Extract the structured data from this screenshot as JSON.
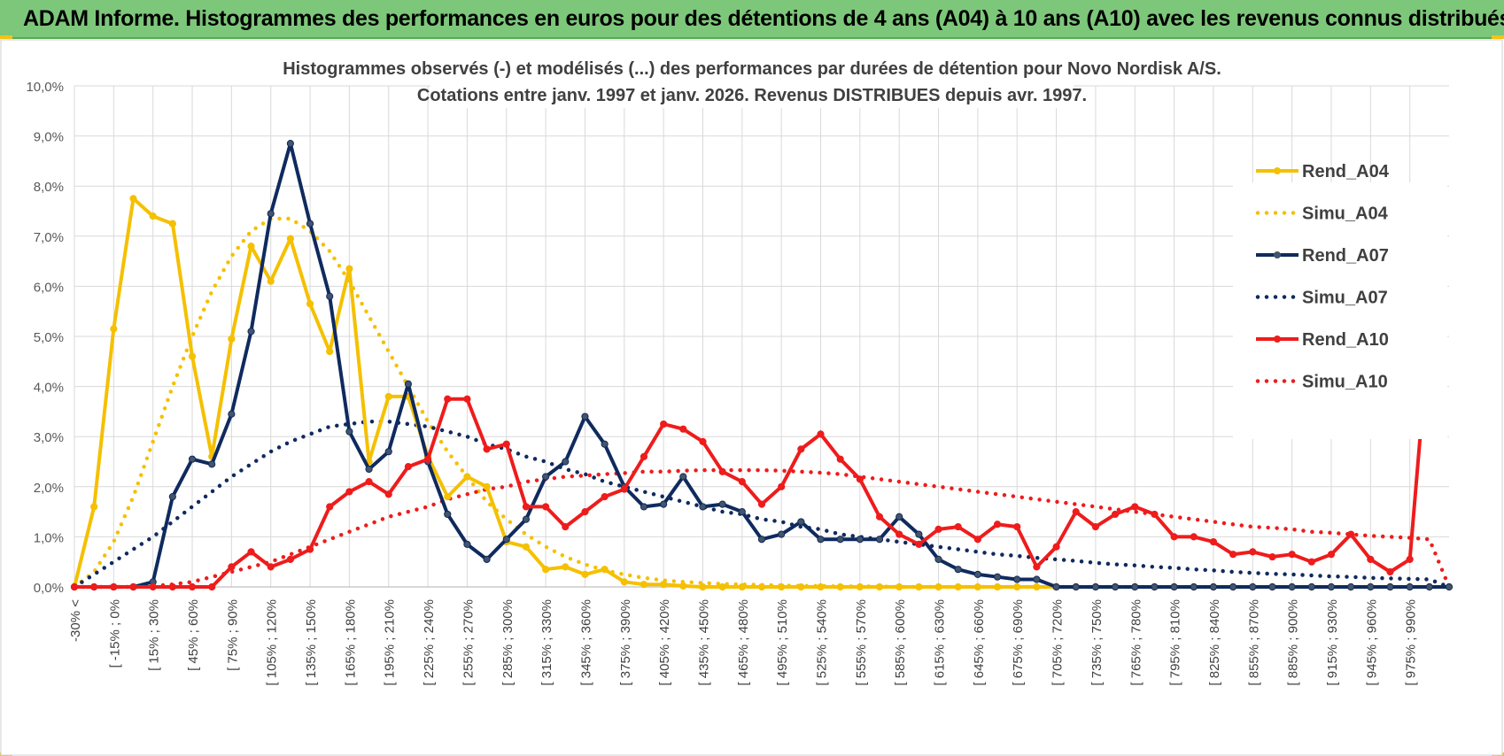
{
  "header": {
    "title": "ADAM Informe. Histogrammes des performances en euros pour des détentions de 4 ans (A04) à 10 ans (A10) avec les revenus connus distribués"
  },
  "colors": {
    "banner": "#7dc77a",
    "a04": "#f5c000",
    "a07": "#0f2a5e",
    "a10": "#ee1c1c",
    "grid": "#d9d9d9"
  },
  "chart_data": {
    "type": "line",
    "title": "Histogrammes observés (-) et modélisés (...) des performances par durées de détention pour Novo Nordisk A/S.",
    "subtitle": "Cotations entre janv. 1997 et janv. 2026. Revenus DISTRIBUES depuis avr. 1997.",
    "ylim": [
      0,
      10
    ],
    "yticks": [
      "0,0%",
      "1,0%",
      "2,0%",
      "3,0%",
      "4,0%",
      "5,0%",
      "6,0%",
      "7,0%",
      "8,0%",
      "9,0%",
      "10,0%"
    ],
    "grid": true,
    "legend_position": "right",
    "x_labels": [
      "-30% <",
      "[ -15% ; 0%",
      "[ 15% ; 30%",
      "[ 45% ; 60%",
      "[ 75% ; 90%",
      "[ 105% ; 120%",
      "[ 135% ; 150%",
      "[ 165% ; 180%",
      "[ 195% ; 210%",
      "[ 225% ; 240%",
      "[ 255% ; 270%",
      "[ 285% ; 300%",
      "[ 315% ; 330%",
      "[ 345% ; 360%",
      "[ 375% ; 390%",
      "[ 405% ; 420%",
      "[ 435% ; 450%",
      "[ 465% ; 480%",
      "[ 495% ; 510%",
      "[ 525% ; 540%",
      "[ 555% ; 570%",
      "[ 585% ; 600%",
      "[ 615% ; 630%",
      "[ 645% ; 660%",
      "[ 675% ; 690%",
      "[ 705% ; 720%",
      "[ 735% ; 750%",
      "[ 765% ; 780%",
      "[ 795% ; 810%",
      "[ 825% ; 840%",
      "[ 855% ; 870%",
      "[ 885% ; 900%",
      "[ 915% ; 930%",
      "[ 945% ; 960%",
      "[ 975% ; 990%"
    ],
    "series": [
      {
        "name": "Rend_A04",
        "style": "solid",
        "color": "#f5c000",
        "values": [
          0,
          1.6,
          5.15,
          7.75,
          7.4,
          7.25,
          4.6,
          2.6,
          4.95,
          6.8,
          6.1,
          6.95,
          5.65,
          4.7,
          6.35,
          2.5,
          3.8,
          3.8,
          2.6,
          1.8,
          2.2,
          2.0,
          0.9,
          0.8,
          0.35,
          0.4,
          0.25,
          0.35,
          0.1,
          0.05,
          0.05,
          0.02,
          0,
          0,
          0,
          0,
          0,
          0,
          0,
          0,
          0,
          0,
          0,
          0,
          0,
          0,
          0,
          0,
          0,
          0,
          0,
          0,
          0,
          0,
          0,
          0,
          0,
          0,
          0,
          0,
          0,
          0,
          0,
          0,
          0,
          0,
          0,
          0,
          0,
          0,
          0
        ]
      },
      {
        "name": "Simu_A04",
        "style": "dotted",
        "color": "#f5c000",
        "values": [
          0,
          0.3,
          0.9,
          1.8,
          2.9,
          4.0,
          5.0,
          5.9,
          6.6,
          7.1,
          7.35,
          7.35,
          7.1,
          6.7,
          6.1,
          5.4,
          4.7,
          4.0,
          3.3,
          2.7,
          2.2,
          1.7,
          1.35,
          1.05,
          0.8,
          0.6,
          0.45,
          0.33,
          0.25,
          0.18,
          0.13,
          0.1,
          0.08,
          0.06,
          0.05,
          0.04,
          0.03,
          0.02,
          0.02,
          0.01,
          0.01,
          0.01,
          0,
          0,
          0,
          0,
          0,
          0,
          0,
          0,
          0,
          0,
          0,
          0,
          0,
          0,
          0,
          0,
          0,
          0,
          0,
          0,
          0,
          0,
          0,
          0,
          0,
          0,
          0,
          0,
          0
        ]
      },
      {
        "name": "Rend_A07",
        "style": "solid",
        "color": "#0f2a5e",
        "values": [
          0,
          0,
          0,
          0,
          0.1,
          1.8,
          2.55,
          2.45,
          3.45,
          5.1,
          7.45,
          8.85,
          7.25,
          5.8,
          3.1,
          2.35,
          2.7,
          4.05,
          2.5,
          1.45,
          0.85,
          0.55,
          0.95,
          1.35,
          2.2,
          2.5,
          3.4,
          2.85,
          2.0,
          1.6,
          1.65,
          2.2,
          1.6,
          1.65,
          1.5,
          0.95,
          1.05,
          1.3,
          0.95,
          0.95,
          0.95,
          0.95,
          1.4,
          1.05,
          0.55,
          0.35,
          0.25,
          0.2,
          0.15,
          0.15,
          0,
          0,
          0,
          0,
          0,
          0,
          0,
          0,
          0,
          0,
          0,
          0,
          0,
          0,
          0,
          0,
          0,
          0,
          0,
          0,
          0
        ]
      },
      {
        "name": "Simu_A07",
        "style": "dotted",
        "color": "#0f2a5e",
        "values": [
          0,
          0.25,
          0.5,
          0.75,
          1.0,
          1.3,
          1.6,
          1.9,
          2.2,
          2.45,
          2.7,
          2.9,
          3.05,
          3.2,
          3.25,
          3.3,
          3.3,
          3.25,
          3.2,
          3.1,
          3.0,
          2.85,
          2.75,
          2.6,
          2.5,
          2.35,
          2.25,
          2.1,
          2.0,
          1.9,
          1.8,
          1.7,
          1.6,
          1.5,
          1.45,
          1.35,
          1.3,
          1.2,
          1.15,
          1.05,
          1.0,
          0.95,
          0.9,
          0.85,
          0.8,
          0.75,
          0.7,
          0.65,
          0.62,
          0.58,
          0.55,
          0.52,
          0.48,
          0.45,
          0.43,
          0.4,
          0.38,
          0.35,
          0.33,
          0.3,
          0.28,
          0.26,
          0.25,
          0.23,
          0.21,
          0.2,
          0.18,
          0.17,
          0.16,
          0.15,
          0
        ]
      },
      {
        "name": "Rend_A10",
        "style": "solid",
        "color": "#ee1c1c",
        "values": [
          0,
          0,
          0,
          0,
          0,
          0,
          0,
          0,
          0.4,
          0.7,
          0.4,
          0.55,
          0.75,
          1.6,
          1.9,
          2.1,
          1.85,
          2.4,
          2.55,
          3.75,
          3.75,
          2.75,
          2.85,
          1.6,
          1.6,
          1.2,
          1.5,
          1.8,
          1.95,
          2.6,
          3.25,
          3.15,
          2.9,
          2.3,
          2.1,
          1.65,
          2.0,
          2.75,
          3.05,
          2.55,
          2.15,
          1.4,
          1.05,
          0.85,
          1.15,
          1.2,
          0.95,
          1.25,
          1.2,
          0.4,
          0.8,
          1.5,
          1.2,
          1.45,
          1.6,
          1.45,
          1.0,
          1.0,
          0.9,
          0.65,
          0.7,
          0.6,
          0.65,
          0.5,
          0.65,
          1.05,
          0.55,
          0.3,
          0.55,
          5.2
        ]
      },
      {
        "name": "Simu_A10",
        "style": "dotted",
        "color": "#ee1c1c",
        "values": [
          0,
          0,
          0,
          0,
          0.02,
          0.05,
          0.1,
          0.2,
          0.3,
          0.4,
          0.5,
          0.65,
          0.8,
          0.95,
          1.1,
          1.25,
          1.4,
          1.5,
          1.6,
          1.75,
          1.85,
          1.95,
          2.0,
          2.1,
          2.15,
          2.2,
          2.22,
          2.25,
          2.27,
          2.3,
          2.3,
          2.32,
          2.33,
          2.33,
          2.33,
          2.33,
          2.32,
          2.3,
          2.28,
          2.25,
          2.2,
          2.15,
          2.1,
          2.05,
          2.0,
          1.95,
          1.9,
          1.85,
          1.8,
          1.75,
          1.7,
          1.65,
          1.6,
          1.55,
          1.5,
          1.45,
          1.4,
          1.35,
          1.3,
          1.25,
          1.2,
          1.18,
          1.15,
          1.1,
          1.08,
          1.05,
          1.02,
          1.0,
          0.98,
          0.95,
          0
        ]
      }
    ]
  }
}
